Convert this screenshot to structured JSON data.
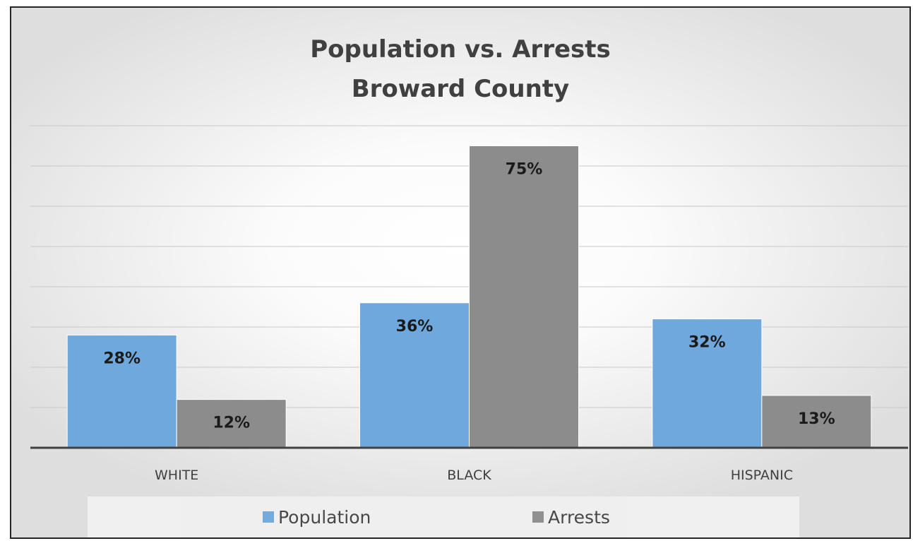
{
  "chart_data": {
    "type": "bar",
    "title": "Population vs. Arrests",
    "subtitle": "Broward County",
    "categories": [
      "WHITE",
      "BLACK",
      "HISPANIC"
    ],
    "series": [
      {
        "name": "Population",
        "color": "#6fa8dc",
        "values": [
          28,
          36,
          32
        ],
        "labels": [
          "28%",
          "36%",
          "32%"
        ]
      },
      {
        "name": "Arrests",
        "color": "#8c8c8c",
        "values": [
          12,
          75,
          13
        ],
        "labels": [
          "12%",
          "75%",
          "13%"
        ]
      }
    ],
    "ylim": [
      0,
      80
    ],
    "grid": true,
    "legend": "bottom"
  }
}
